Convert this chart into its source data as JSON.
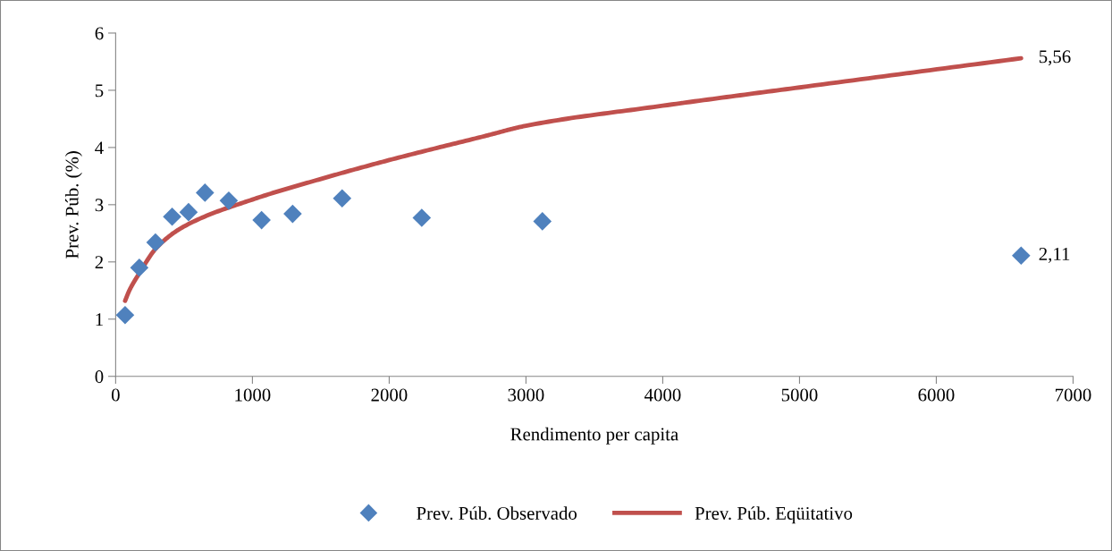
{
  "chart_data": {
    "type": "scatter",
    "xlabel": "Rendimento per capita",
    "ylabel": "Prev. Púb. (%)",
    "xlim": [
      0,
      7000
    ],
    "xticks": [
      0,
      1000,
      2000,
      3000,
      4000,
      5000,
      6000,
      7000
    ],
    "ylim": [
      0,
      6
    ],
    "yticks": [
      0,
      1,
      2,
      3,
      4,
      5,
      6
    ],
    "grid": false,
    "legend": "bottom",
    "series": [
      {
        "name": "Prev. Púb. Observado",
        "marker": "diamond",
        "color": "#4f81bd",
        "x": [
          69,
          173,
          291,
          413,
          533,
          653,
          827,
          1067,
          1294,
          1656,
          2238,
          3120,
          6620
        ],
        "values": [
          1.07,
          1.9,
          2.34,
          2.79,
          2.87,
          3.21,
          3.07,
          2.73,
          2.84,
          3.11,
          2.77,
          2.71,
          2.11
        ],
        "value_labels": [
          null,
          null,
          null,
          null,
          null,
          null,
          null,
          null,
          null,
          null,
          null,
          null,
          "2,11"
        ]
      },
      {
        "name": "Prev. Púb. Eqüitativo",
        "type": "line",
        "marker": "none",
        "line_style": "solid",
        "color": "#c0504d",
        "x": [
          69,
          100,
          170,
          300,
          500,
          1000,
          1500,
          2000,
          2700,
          3000,
          4000,
          5000,
          6620
        ],
        "values": [
          1.32,
          1.5,
          1.79,
          2.25,
          2.62,
          3.09,
          3.45,
          3.78,
          4.2,
          4.38,
          4.73,
          5.05,
          5.56
        ],
        "value_labels": [
          null,
          null,
          null,
          null,
          null,
          null,
          null,
          null,
          null,
          null,
          null,
          null,
          "5,56"
        ]
      }
    ]
  }
}
